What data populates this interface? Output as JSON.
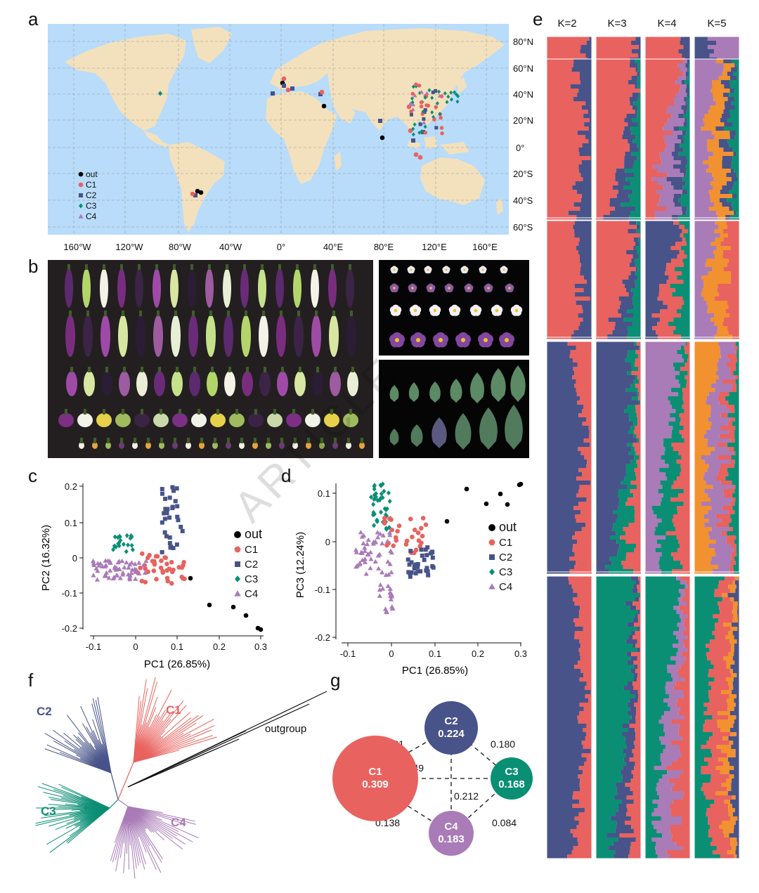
{
  "panels": {
    "a": "a",
    "b": "b",
    "c": "c",
    "d": "d",
    "e": "e",
    "f": "f",
    "g": "g"
  },
  "colors": {
    "out": "#000000",
    "C1": "#e8625f",
    "C2": "#475389",
    "C3": "#0a8f75",
    "C4": "#a97bb7",
    "orange": "#f2912f",
    "ocean": "#b8dcfa",
    "land": "#f3e1bd"
  },
  "legend": [
    {
      "label": "out",
      "marker": "circle",
      "color": "#000000"
    },
    {
      "label": "C1",
      "marker": "circle",
      "color": "#e8625f"
    },
    {
      "label": "C2",
      "marker": "square",
      "color": "#475389"
    },
    {
      "label": "C3",
      "marker": "diamond",
      "color": "#0a8f75"
    },
    {
      "label": "C4",
      "marker": "triangle",
      "color": "#a97bb7"
    }
  ],
  "map": {
    "lat_ticks": [
      "80°N",
      "60°N",
      "40°N",
      "20°N",
      "0°",
      "20°S",
      "40°S",
      "60°S"
    ],
    "lon_ticks": [
      "160°W",
      "120°W",
      "80°W",
      "40°W",
      "0°",
      "40°E",
      "80°E",
      "120°E",
      "160°E"
    ]
  },
  "pca_c": {
    "xlabel": "PC1 (26.85%)",
    "ylabel": "PC2 (16.32%)",
    "xticks": [
      "-0.1",
      "0",
      "0.1",
      "0.2",
      "0.3"
    ],
    "yticks": [
      "0.2",
      "0.1",
      "0",
      "-0.1",
      "-0.2"
    ]
  },
  "pca_d": {
    "xlabel": "PC1 (26.85%)",
    "ylabel": "PC3 (12.24%)",
    "xticks": [
      "-0.1",
      "0",
      "0.1",
      "0.2",
      "0.3"
    ],
    "yticks": [
      "0.1",
      "0",
      "-0.1",
      "-0.2"
    ]
  },
  "structure": {
    "headers": [
      "K=2",
      "K=3",
      "K=4",
      "K=5"
    ]
  },
  "tree": {
    "labels": {
      "C1": "C1",
      "C2": "C2",
      "C3": "C3",
      "C4": "C4",
      "outgroup": "outgroup"
    }
  },
  "network": {
    "nodes": [
      {
        "name": "C2",
        "value": "0.224"
      },
      {
        "name": "C1",
        "value": "0.309"
      },
      {
        "name": "C3",
        "value": "0.168"
      },
      {
        "name": "C4",
        "value": "0.183"
      }
    ],
    "edges": [
      {
        "pair": "C1-C2",
        "value": "0.161"
      },
      {
        "pair": "C2-C3",
        "value": "0.180"
      },
      {
        "pair": "C1-C3",
        "value": "0.149"
      },
      {
        "pair": "C2-C4",
        "value": "0.212"
      },
      {
        "pair": "C1-C4",
        "value": "0.138"
      },
      {
        "pair": "C3-C4",
        "value": "0.084"
      }
    ]
  },
  "watermark": "ARTICLE"
}
